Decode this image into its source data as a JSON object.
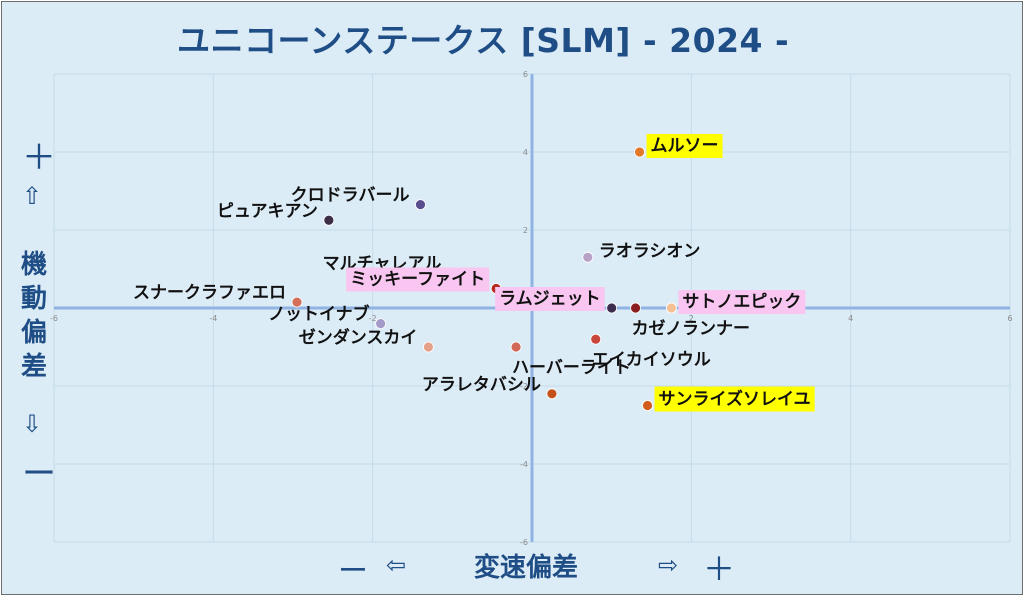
{
  "page": {
    "title": "ユニコーンステークス [SLM]   - 2024 -",
    "y_axis": {
      "plus": "＋",
      "up_arrow": "⇧",
      "label": "機動偏差",
      "down_arrow": "⇩",
      "minus": "ー"
    },
    "x_axis": {
      "minus": "ー",
      "left_arrow": "⇦",
      "label": "変速偏差",
      "right_arrow": "⇨",
      "plus": "＋"
    }
  },
  "colors": {
    "background": "#dcecf6",
    "axis": "#8fb4e3",
    "grid": "#c5dbe9",
    "title": "#1f4e86",
    "highlight_yellow": "#ffff00",
    "highlight_pink": "#f8c6f0"
  },
  "chart_data": {
    "type": "scatter",
    "title": "ユニコーンステークス [SLM]   - 2024 -",
    "xlabel": "変速偏差",
    "ylabel": "機動偏差",
    "xlim": [
      -6,
      6
    ],
    "ylim": [
      -6,
      6
    ],
    "x_ticks": [
      -6,
      -4,
      -2,
      0,
      2,
      4,
      6
    ],
    "y_ticks": [
      -6,
      -4,
      -2,
      0,
      2,
      4,
      6
    ],
    "grid": true,
    "points": [
      {
        "name": "ムルソー",
        "x": 1.35,
        "y": 4.0,
        "color": "#e2792a",
        "highlight": "yellow",
        "label_side": "right"
      },
      {
        "name": "クロドラバール",
        "x": -1.4,
        "y": 2.65,
        "color": "#5a4c8f",
        "highlight": "none",
        "label_side": "left"
      },
      {
        "name": "ピュアキアン",
        "x": -2.55,
        "y": 2.25,
        "color": "#3b2e45",
        "highlight": "none",
        "label_side": "left"
      },
      {
        "name": "ラオラシオン",
        "x": 0.7,
        "y": 1.3,
        "color": "#b7a2c6",
        "highlight": "none",
        "label_side": "right"
      },
      {
        "name": "マルチャレアル",
        "x": -1.0,
        "y": 0.9,
        "color": "#f0a96a",
        "highlight": "none",
        "label_side": "left"
      },
      {
        "name": "ミッキーファイト",
        "x": -0.45,
        "y": 0.5,
        "color": "#b5291f",
        "highlight": "pink",
        "label_side": "left"
      },
      {
        "name": "スナークラファエロ",
        "x": -2.95,
        "y": 0.15,
        "color": "#d4705a",
        "highlight": "none",
        "label_side": "left"
      },
      {
        "name": "サトノエピック",
        "x": 1.75,
        "y": 0.0,
        "color": "#f5c194",
        "highlight": "pink",
        "label_side": "right"
      },
      {
        "name": "ラムジェット",
        "x": 1.0,
        "y": 0.0,
        "color": "#3c2c4c",
        "highlight": "pink",
        "label_side": "left"
      },
      {
        "name": "カゼノランナー",
        "x": 1.3,
        "y": 0.0,
        "color": "#8b1e1e",
        "highlight": "none",
        "label_side": "below"
      },
      {
        "name": "ノットイナブ",
        "x": -1.9,
        "y": -0.4,
        "color": "#a59ac8",
        "highlight": "none",
        "label_side": "left"
      },
      {
        "name": "エイカイソウル",
        "x": 0.8,
        "y": -0.8,
        "color": "#c9463a",
        "highlight": "none",
        "label_side": "below"
      },
      {
        "name": "ゼンダンスカイ",
        "x": -1.3,
        "y": -1.0,
        "color": "#e6a08a",
        "highlight": "none",
        "label_side": "left"
      },
      {
        "name": "ハーバーライト",
        "x": -0.2,
        "y": -1.0,
        "color": "#d2685a",
        "highlight": "none",
        "label_side": "below"
      },
      {
        "name": "アラレタバシル",
        "x": 0.25,
        "y": -2.2,
        "color": "#c4501a",
        "highlight": "none",
        "label_side": "left"
      },
      {
        "name": "サンライズソレイユ",
        "x": 1.45,
        "y": -2.5,
        "color": "#d15a1c",
        "highlight": "yellow",
        "label_side": "right"
      }
    ]
  }
}
